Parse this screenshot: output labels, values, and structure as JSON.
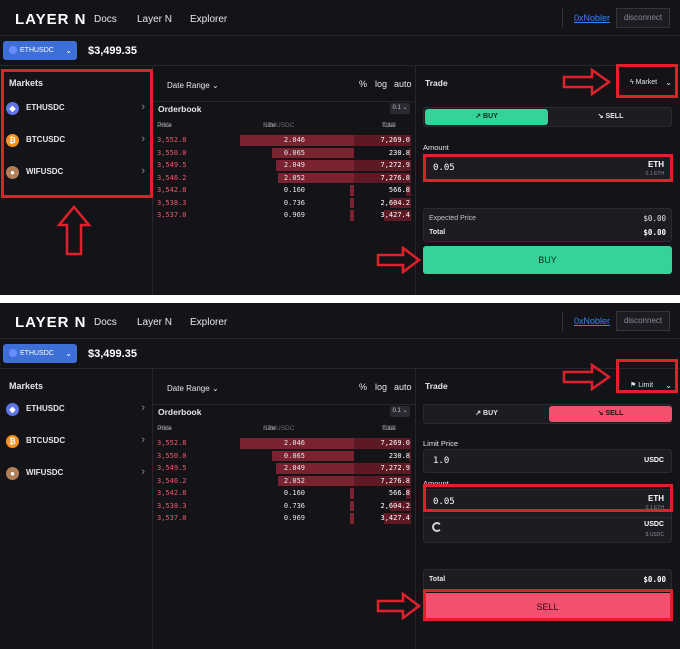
{
  "brand": "LAYER N",
  "nav": {
    "docs": "Docs",
    "layern": "Layer N",
    "explorer": "Explorer",
    "user": "0xNobler",
    "disconnect": "disconnect"
  },
  "pair": {
    "selected": "ETHUSDC",
    "price": "$3,499.35"
  },
  "markets": {
    "title": "Markets",
    "items": [
      {
        "label": "ETHUSDC",
        "icon": "ethereum-icon"
      },
      {
        "label": "BTCUSDC",
        "icon": "bitcoin-icon"
      },
      {
        "label": "WIFUSDC",
        "icon": "wif-dog-icon"
      }
    ]
  },
  "chart_options": {
    "date_range": "Date Range",
    "percent": "%",
    "log": "log",
    "auto": "auto"
  },
  "orderbook": {
    "title": "Orderbook",
    "step": "0.1",
    "headers": {
      "price": "Price",
      "price_unit": "USD",
      "size": "Size",
      "size_unit": "ETHUSDC",
      "total": "Total",
      "total_unit": "USD"
    },
    "rows": [
      {
        "price": "3,552.8",
        "size": "2.046",
        "total": "7,269.0",
        "size_fraction": 0.6,
        "total_fraction": 1.0
      },
      {
        "price": "3,550.0",
        "size": "0.065",
        "total": "230.8",
        "size_fraction": 0.43,
        "total_fraction": 0.03
      },
      {
        "price": "3,549.5",
        "size": "2.049",
        "total": "7,272.9",
        "size_fraction": 0.41,
        "total_fraction": 1.0
      },
      {
        "price": "3,546.2",
        "size": "2.052",
        "total": "7,276.8",
        "size_fraction": 0.4,
        "total_fraction": 1.0
      },
      {
        "price": "3,542.8",
        "size": "0.160",
        "total": "566.8",
        "size_fraction": 0.02,
        "total_fraction": 0.08
      },
      {
        "price": "3,538.3",
        "size": "0.736",
        "total": "2,604.2",
        "size_fraction": 0.02,
        "total_fraction": 0.36
      },
      {
        "price": "3,537.0",
        "size": "0.969",
        "total": "3,427.4",
        "size_fraction": 0.02,
        "total_fraction": 0.47
      }
    ]
  },
  "trade_market": {
    "title": "Trade",
    "order_type": "Market",
    "buy": "BUY",
    "sell": "SELL",
    "amount_label": "Amount",
    "amount_value": "0.05",
    "amount_unit": "ETH",
    "amount_sub": "0.1 ETH",
    "expected_price_label": "Expected Price",
    "expected_price": "$0.00",
    "total_label": "Total",
    "total": "$0.00",
    "action": "BUY"
  },
  "trade_limit": {
    "title": "Trade",
    "order_type": "Limit",
    "buy": "BUY",
    "sell": "SELL",
    "limit_price_label": "Limit Price",
    "limit_price_value": "1.0",
    "limit_price_unit": "USDC",
    "amount_label": "Amount",
    "amount_value": "0.05",
    "amount_unit": "ETH",
    "amount_sub": "0.1 ETH",
    "usdc_unit": "USDC",
    "usdc_sub": "$ USDC",
    "total_label": "Total",
    "total": "$0.00",
    "action": "SELL"
  },
  "colors": {
    "background": "#141418",
    "buy": "#34d399",
    "sell": "#f2506e",
    "annotation": "#e0202a",
    "accent": "#3d6fd6"
  }
}
